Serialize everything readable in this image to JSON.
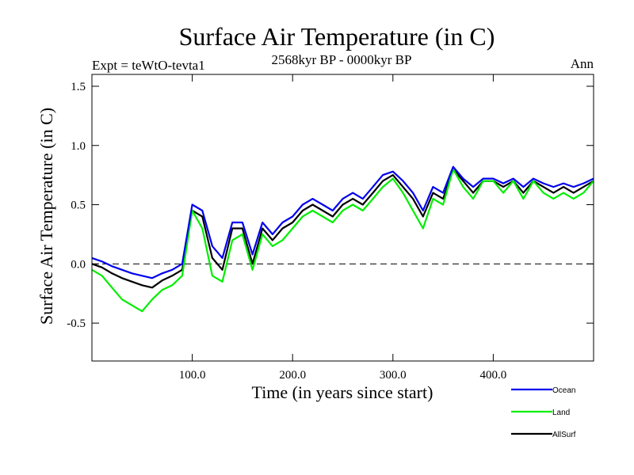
{
  "chart_data": {
    "type": "line",
    "title": "Surface Air Temperature (in C)",
    "subtitle": "2568kyr BP - 0000kyr BP",
    "expt_label": "Expt = teWtO-tevta1",
    "season_label": "Ann",
    "xlabel": "Time (in years since start)",
    "ylabel": "Surface Air Temperature (in C)",
    "xlim": [
      0,
      500
    ],
    "ylim": [
      -0.82,
      1.6
    ],
    "x_ticks": [
      100,
      200,
      300,
      400
    ],
    "x_tick_labels": [
      "100.0",
      "200.0",
      "300.0",
      "400.0"
    ],
    "y_ticks": [
      -0.5,
      0.0,
      0.5,
      1.0,
      1.5
    ],
    "y_tick_labels": [
      "-0.5",
      "0.0",
      "0.5",
      "1.0",
      "1.5"
    ],
    "zero_line": true,
    "legend_position": "bottom-right, below plot",
    "series": [
      {
        "name": "AllSurf",
        "color": "#000000",
        "x": [
          0,
          10,
          20,
          30,
          40,
          50,
          60,
          70,
          80,
          90,
          100,
          110,
          120,
          130,
          140,
          150,
          160,
          170,
          180,
          190,
          200,
          210,
          220,
          230,
          240,
          250,
          260,
          270,
          280,
          290,
          300,
          310,
          320,
          330,
          340,
          350,
          360,
          370,
          380,
          390,
          400,
          410,
          420,
          430,
          440,
          450,
          460,
          470,
          480,
          490,
          500
        ],
        "values": [
          0.0,
          -0.03,
          -0.08,
          -0.12,
          -0.15,
          -0.18,
          -0.2,
          -0.14,
          -0.1,
          -0.05,
          0.45,
          0.4,
          0.05,
          -0.05,
          0.3,
          0.3,
          0.0,
          0.3,
          0.2,
          0.3,
          0.35,
          0.45,
          0.5,
          0.45,
          0.4,
          0.5,
          0.55,
          0.5,
          0.6,
          0.7,
          0.75,
          0.65,
          0.55,
          0.4,
          0.6,
          0.55,
          0.8,
          0.7,
          0.6,
          0.7,
          0.7,
          0.65,
          0.7,
          0.6,
          0.7,
          0.65,
          0.6,
          0.65,
          0.6,
          0.65,
          0.7
        ]
      },
      {
        "name": "Land",
        "color": "#00ee00",
        "x": [
          0,
          10,
          20,
          30,
          40,
          50,
          60,
          70,
          80,
          90,
          100,
          110,
          120,
          130,
          140,
          150,
          160,
          170,
          180,
          190,
          200,
          210,
          220,
          230,
          240,
          250,
          260,
          270,
          280,
          290,
          300,
          310,
          320,
          330,
          340,
          350,
          360,
          370,
          380,
          390,
          400,
          410,
          420,
          430,
          440,
          450,
          460,
          470,
          480,
          490,
          500
        ],
        "values": [
          -0.05,
          -0.1,
          -0.2,
          -0.3,
          -0.35,
          -0.4,
          -0.3,
          -0.22,
          -0.18,
          -0.1,
          0.45,
          0.3,
          -0.1,
          -0.15,
          0.2,
          0.25,
          -0.05,
          0.25,
          0.15,
          0.2,
          0.3,
          0.4,
          0.45,
          0.4,
          0.35,
          0.45,
          0.5,
          0.45,
          0.55,
          0.65,
          0.72,
          0.6,
          0.45,
          0.3,
          0.55,
          0.5,
          0.8,
          0.65,
          0.55,
          0.7,
          0.7,
          0.6,
          0.7,
          0.55,
          0.7,
          0.6,
          0.55,
          0.6,
          0.55,
          0.6,
          0.7
        ]
      },
      {
        "name": "Ocean",
        "color": "#0000ee",
        "x": [
          0,
          10,
          20,
          30,
          40,
          50,
          60,
          70,
          80,
          90,
          100,
          110,
          120,
          130,
          140,
          150,
          160,
          170,
          180,
          190,
          200,
          210,
          220,
          230,
          240,
          250,
          260,
          270,
          280,
          290,
          300,
          310,
          320,
          330,
          340,
          350,
          360,
          370,
          380,
          390,
          400,
          410,
          420,
          430,
          440,
          450,
          460,
          470,
          480,
          490,
          500
        ],
        "values": [
          0.05,
          0.02,
          -0.02,
          -0.05,
          -0.08,
          -0.1,
          -0.12,
          -0.08,
          -0.05,
          0.0,
          0.5,
          0.45,
          0.15,
          0.05,
          0.35,
          0.35,
          0.08,
          0.35,
          0.25,
          0.35,
          0.4,
          0.5,
          0.55,
          0.5,
          0.45,
          0.55,
          0.6,
          0.55,
          0.65,
          0.75,
          0.78,
          0.7,
          0.6,
          0.45,
          0.65,
          0.6,
          0.82,
          0.72,
          0.65,
          0.72,
          0.72,
          0.68,
          0.72,
          0.65,
          0.72,
          0.68,
          0.65,
          0.68,
          0.65,
          0.68,
          0.72
        ]
      }
    ]
  }
}
